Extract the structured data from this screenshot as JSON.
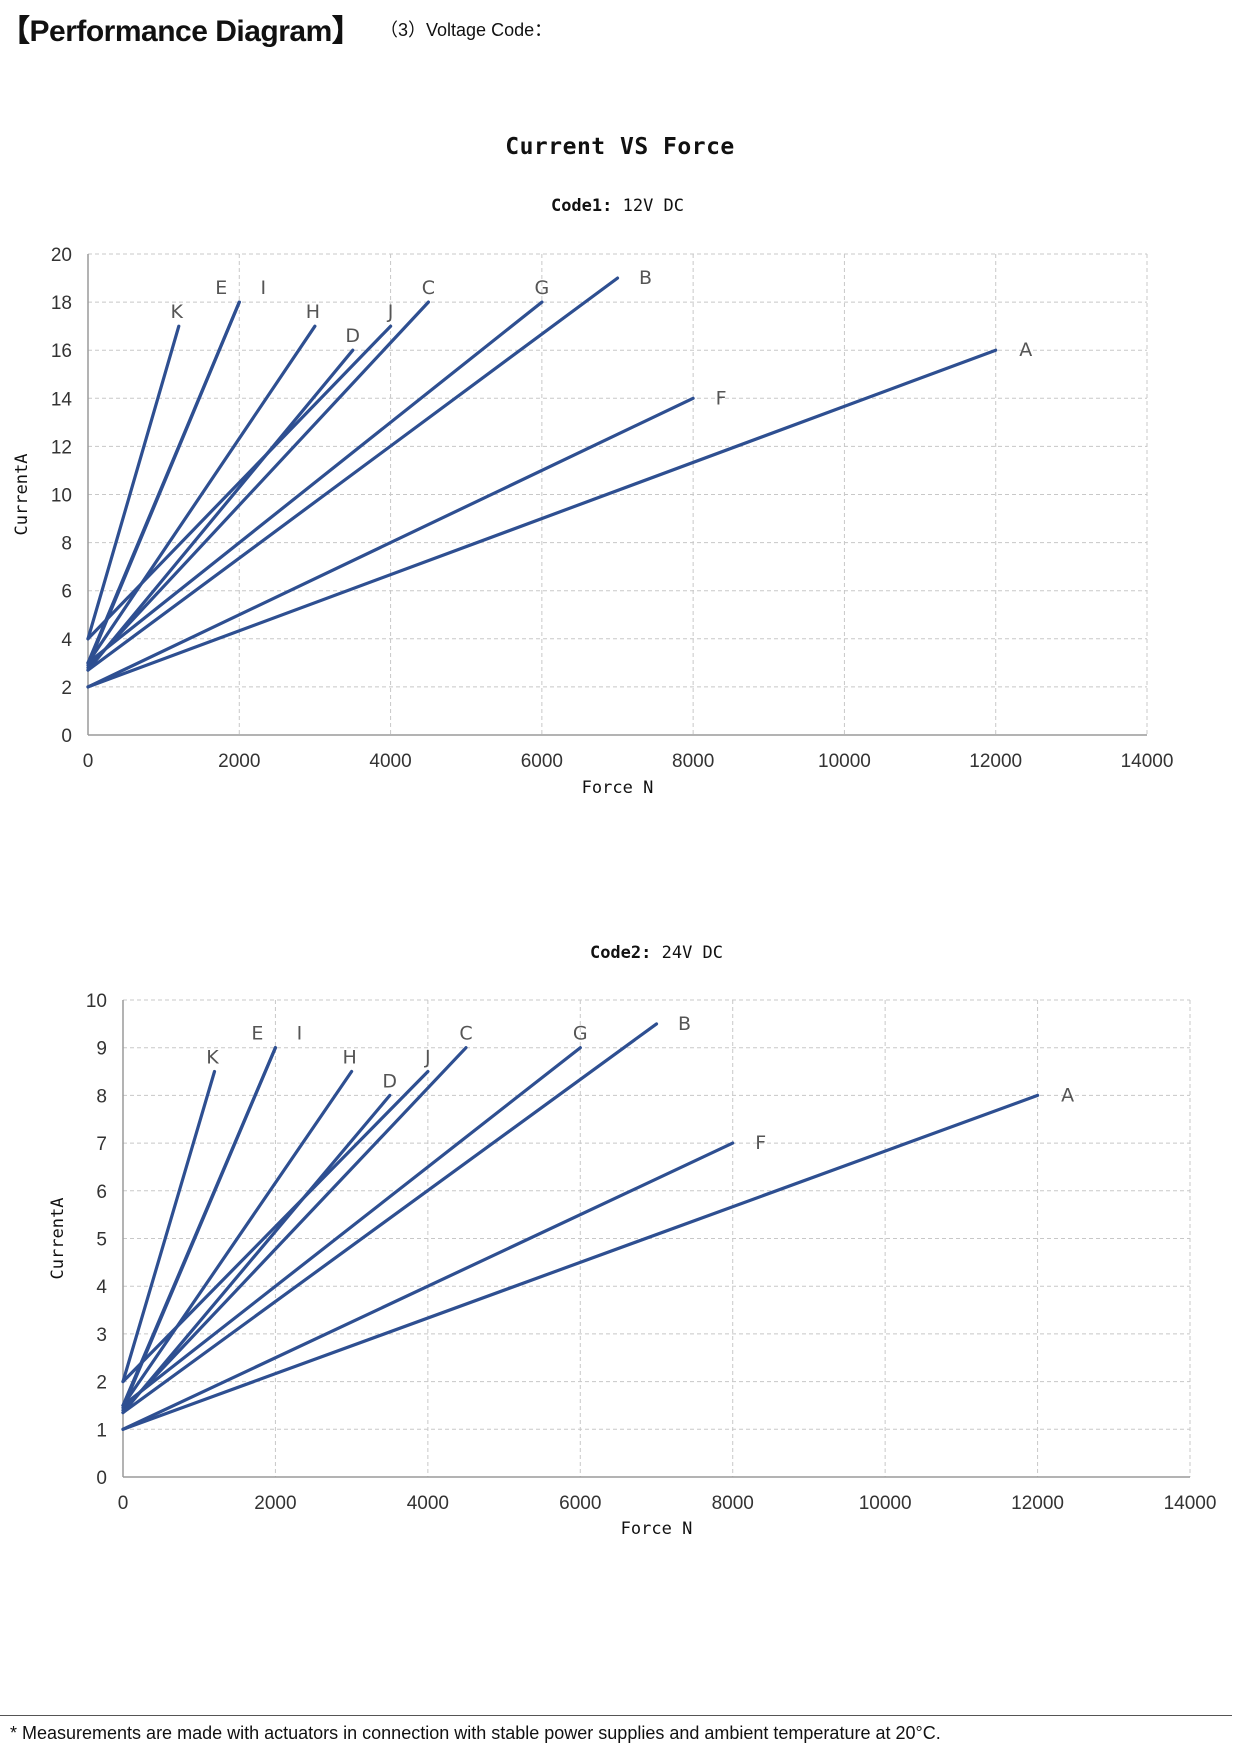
{
  "header": {
    "title": "【Performance Diagram】",
    "subtitle": "（3）Voltage Code："
  },
  "main_title": "Current VS Force",
  "footnote": "* Measurements are made with actuators in connection with stable power supplies and ambient temperature at 20°C.",
  "colors": {
    "series_line": "#2e4f91",
    "grid": "#c8c8c8",
    "axis": "#9a9a9a",
    "tick_text": "#333333",
    "series_label": "#555555"
  },
  "chart_data": [
    {
      "type": "line",
      "title": "Code1: 12V DC",
      "title_parts": [
        "Code1:",
        "12V DC"
      ],
      "xlabel": "Force N",
      "ylabel": "CurrentA",
      "xlim": [
        0,
        14000
      ],
      "ylim": [
        0,
        20
      ],
      "xticks": [
        0,
        2000,
        4000,
        6000,
        8000,
        10000,
        12000,
        14000
      ],
      "yticks": [
        0,
        2,
        4,
        6,
        8,
        10,
        12,
        14,
        16,
        18,
        20
      ],
      "grid": true,
      "legend": "none (series labeled at line ends)",
      "series": [
        {
          "name": "A",
          "x": [
            0,
            12000
          ],
          "y": [
            2,
            16
          ]
        },
        {
          "name": "B",
          "x": [
            0,
            7000
          ],
          "y": [
            2.7,
            19
          ]
        },
        {
          "name": "C",
          "x": [
            0,
            4500
          ],
          "y": [
            2.8,
            18
          ]
        },
        {
          "name": "D",
          "x": [
            0,
            3500
          ],
          "y": [
            2.7,
            16
          ]
        },
        {
          "name": "E",
          "x": [
            0,
            2000
          ],
          "y": [
            3,
            18
          ]
        },
        {
          "name": "F",
          "x": [
            0,
            8000
          ],
          "y": [
            2,
            14
          ]
        },
        {
          "name": "G",
          "x": [
            0,
            6000
          ],
          "y": [
            3,
            18
          ]
        },
        {
          "name": "H",
          "x": [
            0,
            3000
          ],
          "y": [
            3,
            17
          ]
        },
        {
          "name": "I",
          "x": [
            0,
            2000
          ],
          "y": [
            2.9,
            18
          ]
        },
        {
          "name": "J",
          "x": [
            0,
            4000
          ],
          "y": [
            4,
            17
          ]
        },
        {
          "name": "K",
          "x": [
            0,
            1200
          ],
          "y": [
            4,
            17
          ]
        }
      ]
    },
    {
      "type": "line",
      "title": "Code2: 24V DC",
      "title_parts": [
        "Code2:",
        "24V DC"
      ],
      "xlabel": "Force N",
      "ylabel": "CurrentA",
      "xlim": [
        0,
        14000
      ],
      "ylim": [
        0,
        10
      ],
      "xticks": [
        0,
        2000,
        4000,
        6000,
        8000,
        10000,
        12000,
        14000
      ],
      "yticks": [
        0,
        1,
        2,
        3,
        4,
        5,
        6,
        7,
        8,
        9,
        10
      ],
      "grid": true,
      "legend": "none (series labeled at line ends)",
      "series": [
        {
          "name": "A",
          "x": [
            0,
            12000
          ],
          "y": [
            1,
            8
          ]
        },
        {
          "name": "B",
          "x": [
            0,
            7000
          ],
          "y": [
            1.35,
            9.5
          ]
        },
        {
          "name": "C",
          "x": [
            0,
            4500
          ],
          "y": [
            1.4,
            9
          ]
        },
        {
          "name": "D",
          "x": [
            0,
            3500
          ],
          "y": [
            1.35,
            8
          ]
        },
        {
          "name": "E",
          "x": [
            0,
            2000
          ],
          "y": [
            1.5,
            9
          ]
        },
        {
          "name": "F",
          "x": [
            0,
            8000
          ],
          "y": [
            1,
            7
          ]
        },
        {
          "name": "G",
          "x": [
            0,
            6000
          ],
          "y": [
            1.5,
            9
          ]
        },
        {
          "name": "H",
          "x": [
            0,
            3000
          ],
          "y": [
            1.5,
            8.5
          ]
        },
        {
          "name": "I",
          "x": [
            0,
            2000
          ],
          "y": [
            1.45,
            9
          ]
        },
        {
          "name": "J",
          "x": [
            0,
            4000
          ],
          "y": [
            2,
            8.5
          ]
        },
        {
          "name": "K",
          "x": [
            0,
            1200
          ],
          "y": [
            2,
            8.5
          ]
        }
      ]
    }
  ]
}
